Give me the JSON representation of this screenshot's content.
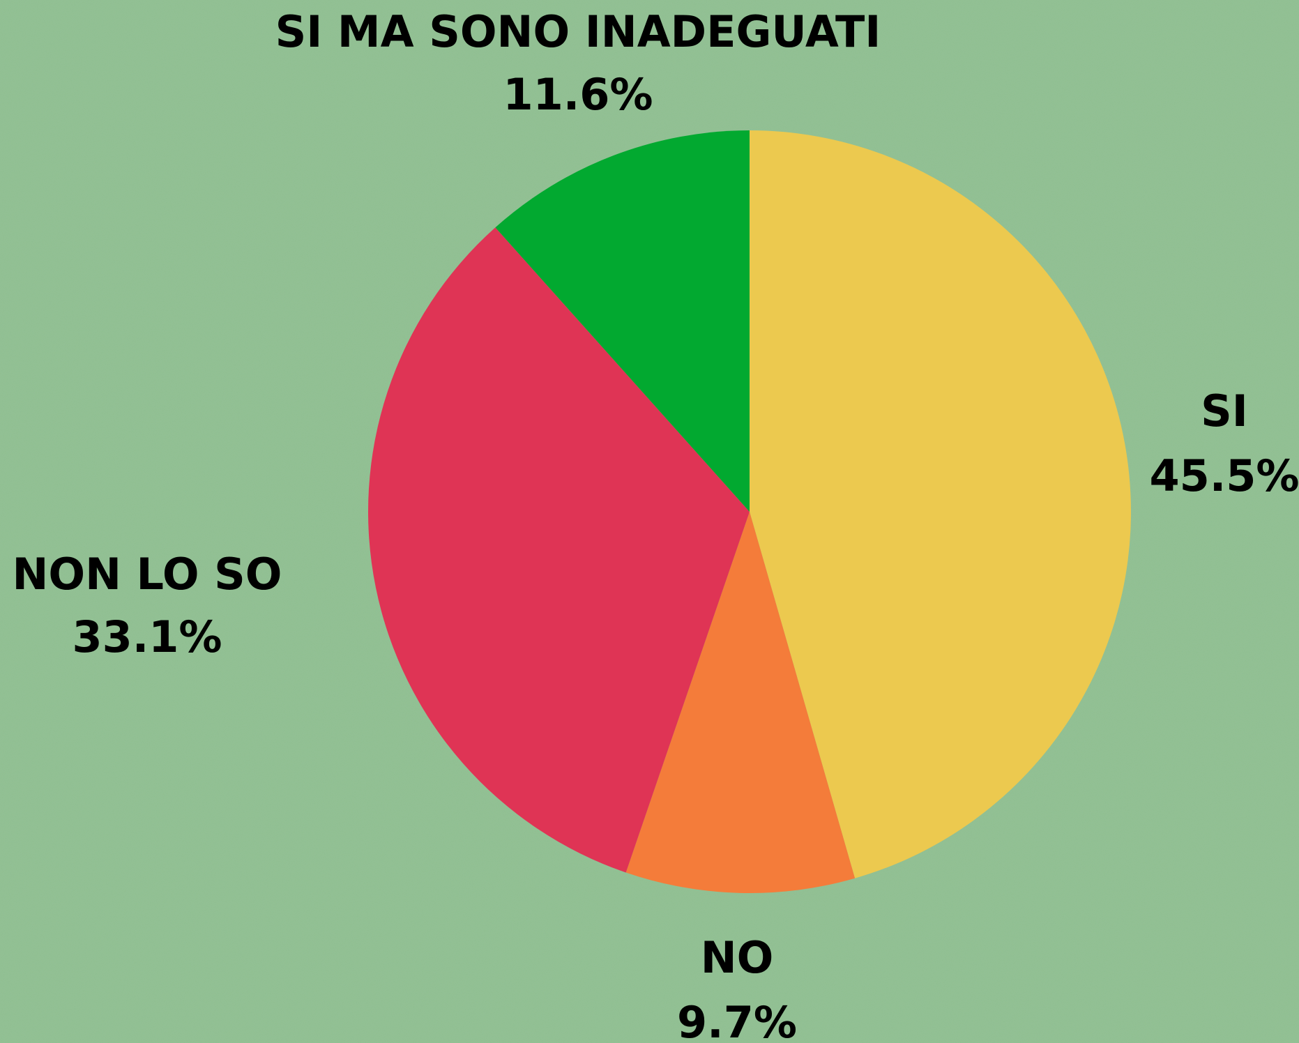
{
  "chart_data": {
    "type": "pie",
    "categories": [
      "SI",
      "NO",
      "NON LO SO",
      "SI MA SONO INADEGUATI"
    ],
    "values": [
      45.5,
      9.7,
      33.1,
      11.6
    ],
    "value_labels": [
      "45.5%",
      "9.7%",
      "33.1%",
      "11.6%"
    ],
    "colors": [
      "#ecc94f",
      "#f47c3a",
      "#df3455",
      "#02a930"
    ]
  }
}
